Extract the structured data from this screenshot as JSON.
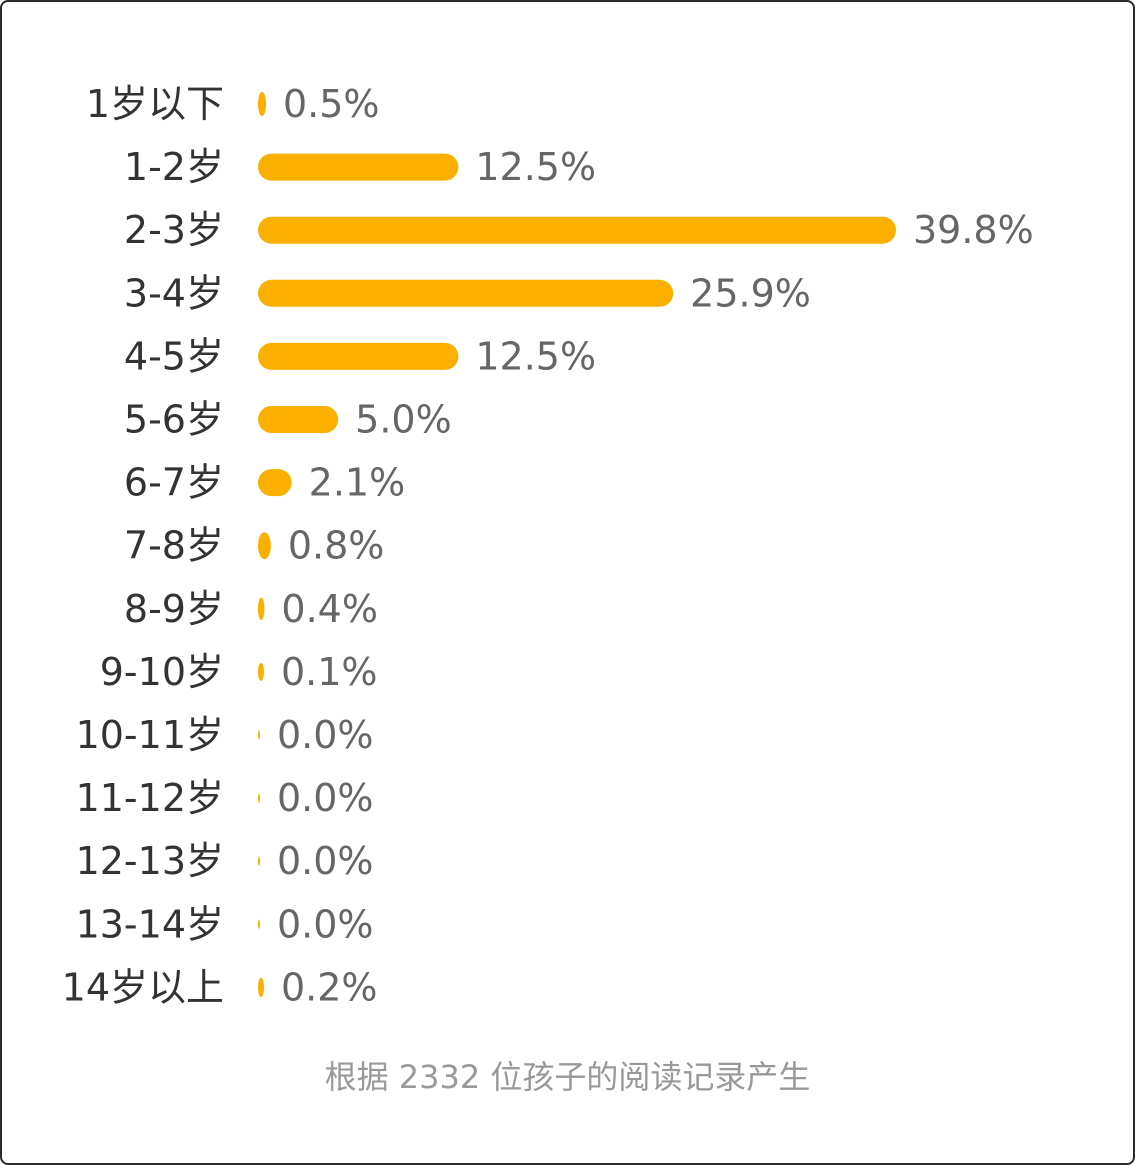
{
  "colors": {
    "bar": "#FBB000",
    "category_text": "#333333",
    "value_text": "#666666",
    "footnote_text": "#999999"
  },
  "chart_data": {
    "type": "bar",
    "orientation": "horizontal",
    "categories": [
      "1岁以下",
      "1-2岁",
      "2-3岁",
      "3-4岁",
      "4-5岁",
      "5-6岁",
      "6-7岁",
      "7-8岁",
      "8-9岁",
      "9-10岁",
      "10-11岁",
      "11-12岁",
      "12-13岁",
      "13-14岁",
      "14岁以上"
    ],
    "values": [
      0.5,
      12.5,
      39.8,
      25.9,
      12.5,
      5.0,
      2.1,
      0.8,
      0.4,
      0.1,
      0.0,
      0.0,
      0.0,
      0.0,
      0.2
    ],
    "value_labels": [
      "0.5%",
      "12.5%",
      "39.8%",
      "25.9%",
      "12.5%",
      "5.0%",
      "2.1%",
      "0.8%",
      "0.4%",
      "0.1%",
      "0.0%",
      "0.0%",
      "0.0%",
      "0.0%",
      "0.2%"
    ],
    "unit": "%",
    "xlim": [
      0,
      39.8
    ],
    "grid": false,
    "legend": "none",
    "title": "",
    "xlabel": "",
    "ylabel": ""
  },
  "footnote": "根据 2332 位孩子的阅读记录产生"
}
